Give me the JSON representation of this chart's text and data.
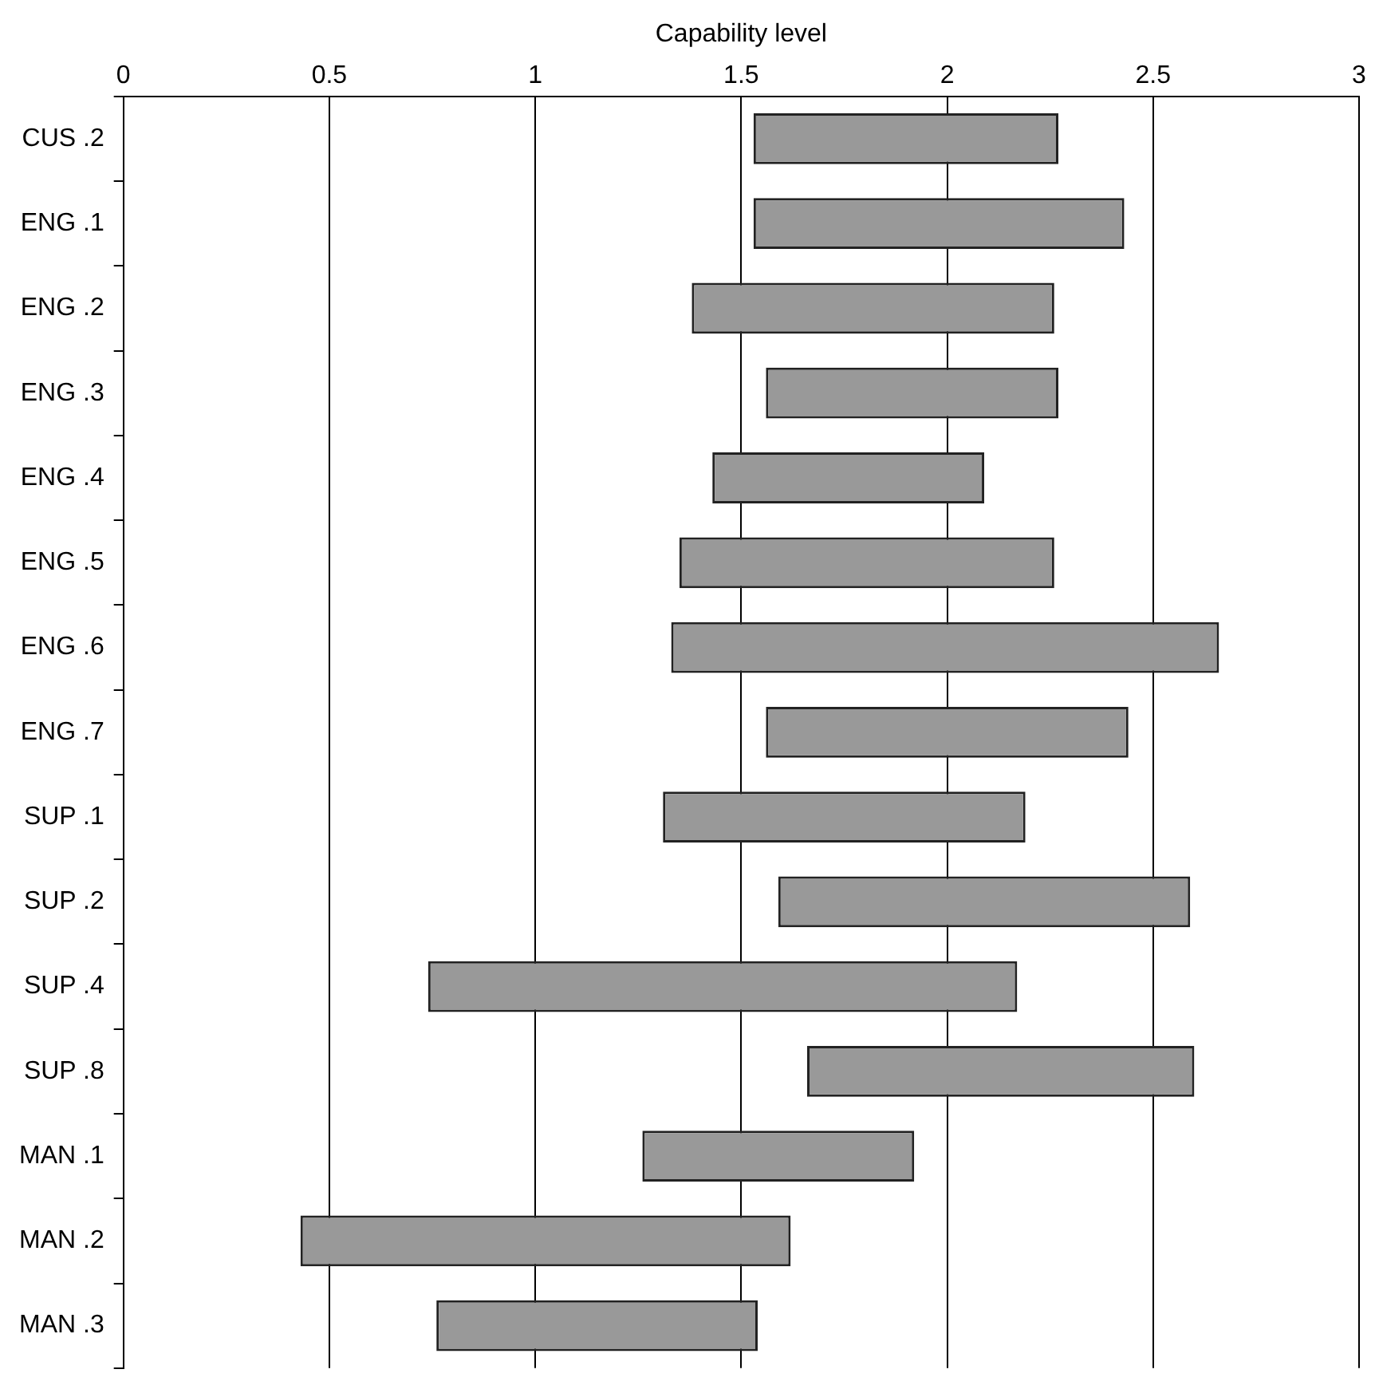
{
  "chart_data": {
    "type": "bar",
    "orientation": "horizontal",
    "xlabel": "Capability level",
    "categories": [
      "CUS .2",
      "ENG .1",
      "ENG .2",
      "ENG .3",
      "ENG .4",
      "ENG .5",
      "ENG .6",
      "ENG .7",
      "SUP .1",
      "SUP .2",
      "SUP .4",
      "SUP .8",
      "MAN .1",
      "MAN .2",
      "MAN .3"
    ],
    "base": [
      1.53,
      1.53,
      1.38,
      1.56,
      1.43,
      1.35,
      1.33,
      1.56,
      1.31,
      1.59,
      0.74,
      1.66,
      1.26,
      0.43,
      0.76
    ],
    "values": [
      0.74,
      0.9,
      0.88,
      0.71,
      0.66,
      0.91,
      1.33,
      0.88,
      0.88,
      1.0,
      1.43,
      0.94,
      0.66,
      1.19,
      0.78
    ],
    "color": "#999999",
    "xlim": [
      0,
      3
    ],
    "xticks": [
      0,
      0.5,
      1,
      1.5,
      2,
      2.5,
      3
    ],
    "grid": "x",
    "legend": false
  }
}
